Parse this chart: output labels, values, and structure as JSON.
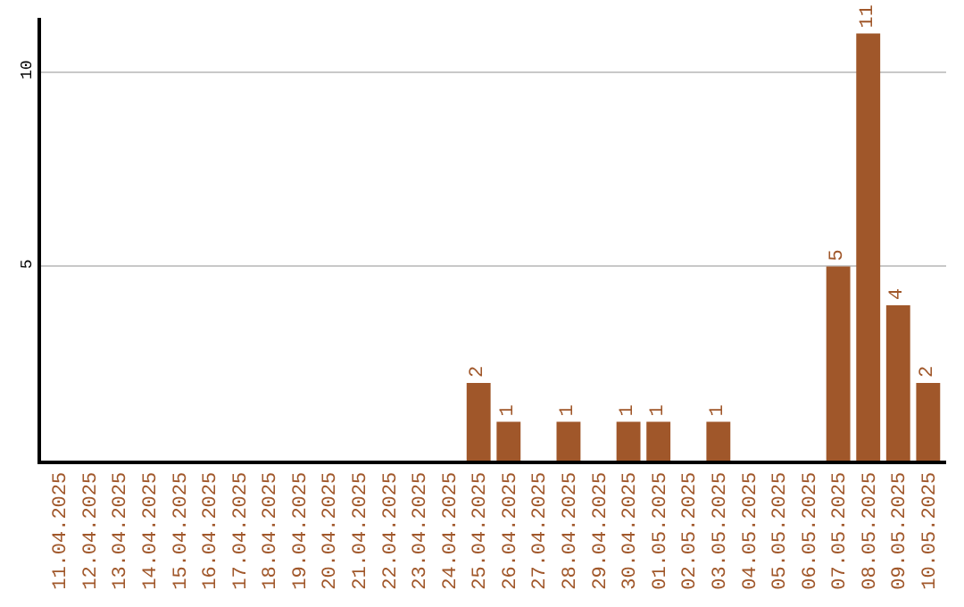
{
  "chart_data": {
    "type": "bar",
    "categories": [
      "11.04.2025",
      "12.04.2025",
      "13.04.2025",
      "14.04.2025",
      "15.04.2025",
      "16.04.2025",
      "17.04.2025",
      "18.04.2025",
      "19.04.2025",
      "20.04.2025",
      "21.04.2025",
      "22.04.2025",
      "23.04.2025",
      "24.04.2025",
      "25.04.2025",
      "26.04.2025",
      "27.04.2025",
      "28.04.2025",
      "29.04.2025",
      "30.04.2025",
      "01.05.2025",
      "02.05.2025",
      "03.05.2025",
      "04.05.2025",
      "05.05.2025",
      "06.05.2025",
      "07.05.2025",
      "08.05.2025",
      "09.05.2025",
      "10.05.2025"
    ],
    "values": [
      0,
      0,
      0,
      0,
      0,
      0,
      0,
      0,
      0,
      0,
      0,
      0,
      0,
      0,
      2,
      1,
      0,
      1,
      0,
      1,
      1,
      0,
      1,
      0,
      0,
      0,
      5,
      11,
      4,
      2
    ],
    "value_labels": [
      null,
      null,
      null,
      null,
      null,
      null,
      null,
      null,
      null,
      null,
      null,
      null,
      null,
      null,
      "2",
      "1",
      null,
      "1",
      null,
      "1",
      "1",
      null,
      "1",
      null,
      null,
      null,
      "5",
      "11",
      "4",
      "2"
    ],
    "color": "#a0572a",
    "ylim": [
      0,
      11.4
    ],
    "yticks": [
      5,
      10
    ],
    "grid": "y",
    "legend": false
  }
}
